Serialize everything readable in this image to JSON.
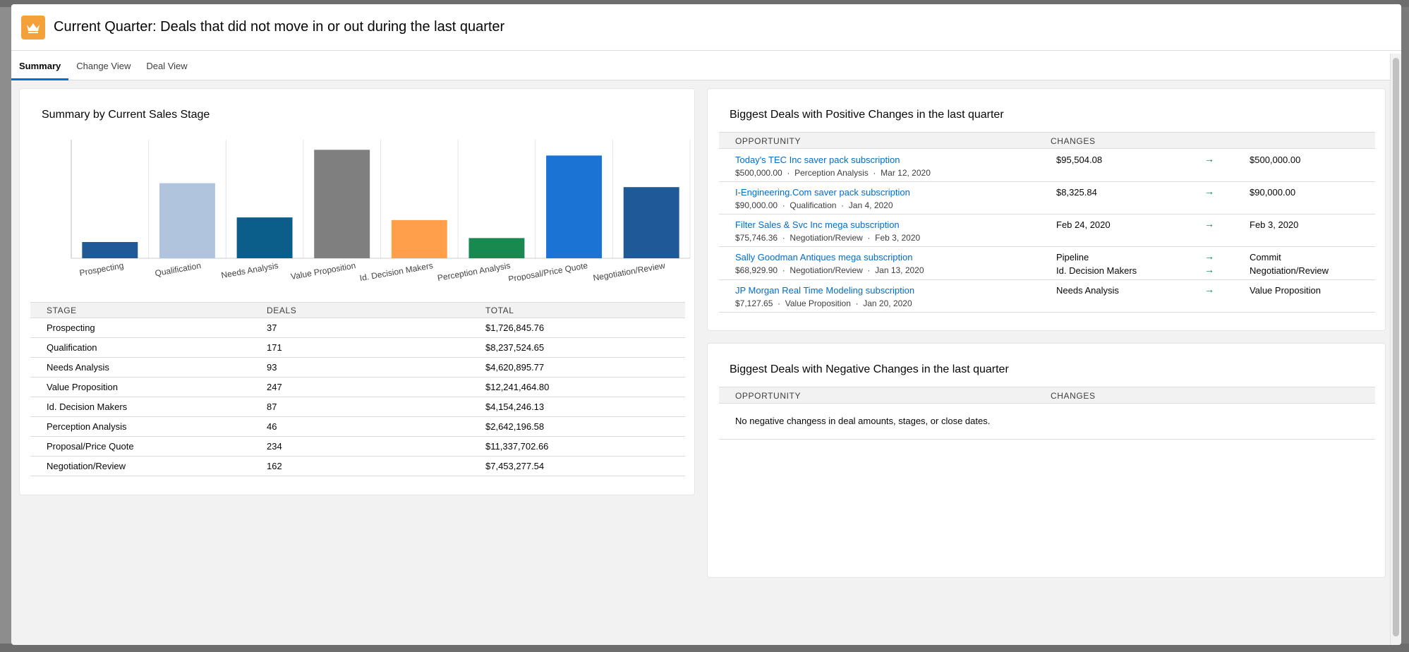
{
  "modal": {
    "title": "Current Quarter: Deals that did not move in or out during the last quarter"
  },
  "tabs": [
    {
      "label": "Summary",
      "active": true
    },
    {
      "label": "Change View",
      "active": false
    },
    {
      "label": "Deal View",
      "active": false
    }
  ],
  "summary": {
    "title": "Summary by Current Sales Stage",
    "columns": [
      "STAGE",
      "DEALS",
      "TOTAL"
    ],
    "rows": [
      {
        "stage": "Prospecting",
        "deals": "37",
        "total": "$1,726,845.76"
      },
      {
        "stage": "Qualification",
        "deals": "171",
        "total": "$8,237,524.65"
      },
      {
        "stage": "Needs Analysis",
        "deals": "93",
        "total": "$4,620,895.77"
      },
      {
        "stage": "Value Proposition",
        "deals": "247",
        "total": "$12,241,464.80"
      },
      {
        "stage": "Id. Decision Makers",
        "deals": "87",
        "total": "$4,154,246.13"
      },
      {
        "stage": "Perception Analysis",
        "deals": "46",
        "total": "$2,642,196.58"
      },
      {
        "stage": "Proposal/Price Quote",
        "deals": "234",
        "total": "$11,337,702.66"
      },
      {
        "stage": "Negotiation/Review",
        "deals": "162",
        "total": "$7,453,277.54"
      }
    ]
  },
  "chart_data": {
    "type": "bar",
    "title": "",
    "categories": [
      "Prospecting",
      "Qualification",
      "Needs Analysis",
      "Value Proposition",
      "Id. Decision Makers",
      "Perception Analysis",
      "Proposal/Price Quote",
      "Negotiation/Review"
    ],
    "values": [
      37,
      171,
      93,
      247,
      87,
      46,
      234,
      162
    ],
    "colors": [
      "#1f5a96",
      "#b0c4de",
      "#0b5d8a",
      "#7f7f7f",
      "#ff9f4a",
      "#188a50",
      "#1b74d4",
      "#1f5a96"
    ],
    "xlabel": "",
    "ylabel": "",
    "ylim": [
      0,
      270
    ],
    "grid": "vertical"
  },
  "positive": {
    "title": "Biggest Deals with Positive Changes in the last quarter",
    "col_opportunity": "OPPORTUNITY",
    "col_changes": "CHANGES",
    "rows": [
      {
        "name": "Today's TEC Inc saver pack subscription",
        "amount": "$500,000.00",
        "stage": "Perception Analysis",
        "date": "Mar 12, 2020",
        "changes": [
          {
            "from": "$95,504.08",
            "to": "$500,000.00"
          }
        ]
      },
      {
        "name": "I-Engineering.Com saver pack subscription",
        "amount": "$90,000.00",
        "stage": "Qualification",
        "date": "Jan 4, 2020",
        "changes": [
          {
            "from": "$8,325.84",
            "to": "$90,000.00"
          }
        ]
      },
      {
        "name": "Filter Sales & Svc Inc mega subscription",
        "amount": "$75,746.36",
        "stage": "Negotiation/Review",
        "date": "Feb 3, 2020",
        "changes": [
          {
            "from": "Feb 24, 2020",
            "to": "Feb 3, 2020"
          }
        ]
      },
      {
        "name": "Sally Goodman Antiques mega subscription",
        "amount": "$68,929.90",
        "stage": "Negotiation/Review",
        "date": "Jan 13, 2020",
        "changes": [
          {
            "from": "Pipeline",
            "to": "Commit"
          },
          {
            "from": "Id. Decision Makers",
            "to": "Negotiation/Review"
          }
        ]
      },
      {
        "name": "JP Morgan Real Time Modeling subscription",
        "amount": "$7,127.65",
        "stage": "Value Proposition",
        "date": "Jan 20, 2020",
        "changes": [
          {
            "from": "Needs Analysis",
            "to": "Value Proposition"
          }
        ]
      }
    ]
  },
  "negative": {
    "title": "Biggest Deals with Negative Changes in the last quarter",
    "col_opportunity": "OPPORTUNITY",
    "col_changes": "CHANGES",
    "empty_message": "No negative changess in deal amounts, stages, or close dates."
  },
  "icons": {
    "header": "crown-icon",
    "arrow": "arrow-right-icon"
  },
  "accent": "#0070d2"
}
